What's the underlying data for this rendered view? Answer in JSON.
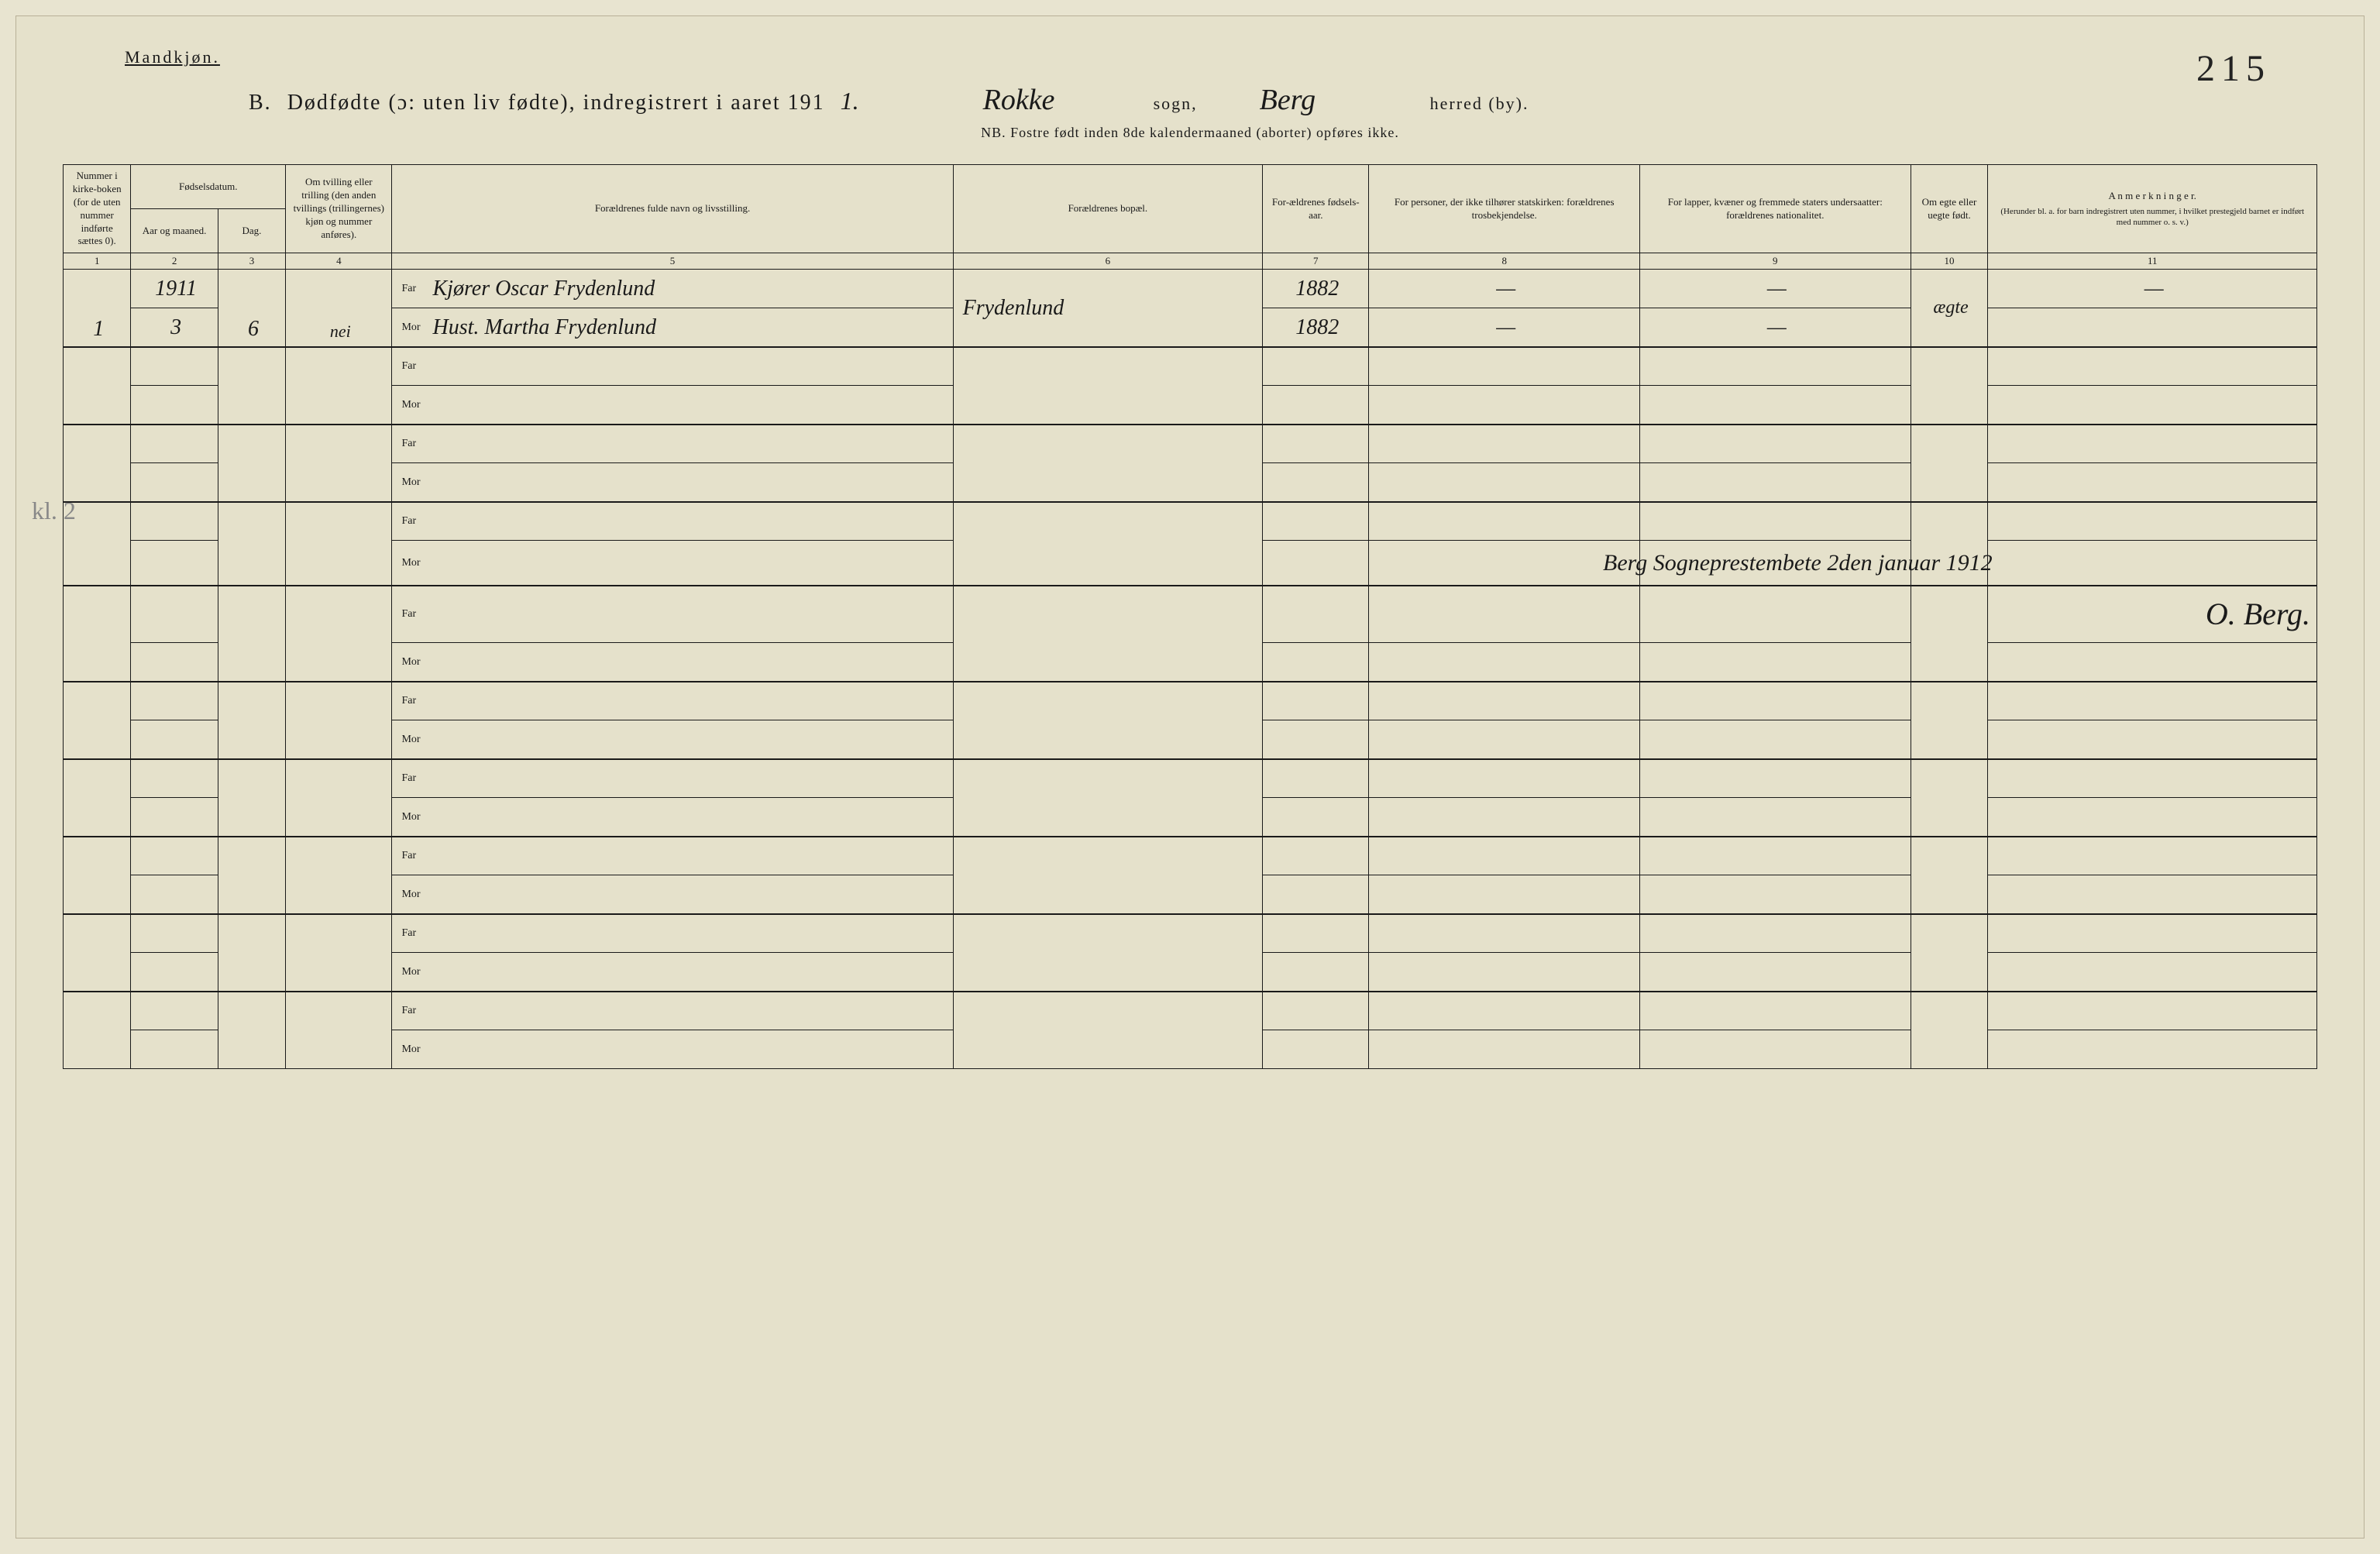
{
  "header": {
    "gender_label": "Mandkjøn.",
    "page_number": "215",
    "title_prefix": "B.",
    "title_main": "Dødfødte (ɔ: uten liv fødte), indregistrert i aaret 191",
    "title_year_suffix": "1.",
    "parish": "Rokke",
    "parish_label": "sogn,",
    "district": "Berg",
    "district_label": "herred (by).",
    "subtitle": "NB. Fostre født inden 8de kalendermaaned (aborter) opføres ikke."
  },
  "columns": {
    "c1": "Nummer i kirke-boken (for de uten nummer indførte sættes 0).",
    "c2_group": "Fødselsdatum.",
    "c2": "Aar og maaned.",
    "c3": "Dag.",
    "c4": "Om tvilling eller trilling (den anden tvillings (trillingernes) kjøn og nummer anføres).",
    "c5": "Forældrenes fulde navn og livsstilling.",
    "c6": "Forældrenes bopæl.",
    "c7": "For-ældrenes fødsels-aar.",
    "c8": "For personer, der ikke tilhører statskirken: forældrenes trosbekjendelse.",
    "c9": "For lapper, kvæner og fremmede staters undersaatter: forældrenes nationalitet.",
    "c10": "Om egte eller uegte født.",
    "c11": "A n m e r k n i n g e r.",
    "c11_sub": "(Herunder bl. a. for barn indregistrert uten nummer, i hvilket prestegjeld barnet er indført med nummer o. s. v.)"
  },
  "col_numbers": [
    "1",
    "2",
    "3",
    "4",
    "5",
    "6",
    "7",
    "8",
    "9",
    "10",
    "11"
  ],
  "far_label": "Far",
  "mor_label": "Mor",
  "entries": [
    {
      "num": "1",
      "year": "1911",
      "month": "3",
      "day": "6",
      "twin": "nei",
      "far_name": "Kjører Oscar Frydenlund",
      "mor_name": "Hust. Martha Frydenlund",
      "residence": "Frydenlund",
      "far_birth": "1882",
      "mor_birth": "1882",
      "religion": "—",
      "nationality": "—",
      "legitimate": "ægte",
      "remarks": "—"
    }
  ],
  "signature": {
    "line1": "Berg Sogneprestembete 2den januar 1912",
    "line2": "O. Berg."
  },
  "margin_note": "kl. 2",
  "colors": {
    "paper": "#e5e1cb",
    "ink": "#1a1a1a",
    "faded": "#888888"
  }
}
